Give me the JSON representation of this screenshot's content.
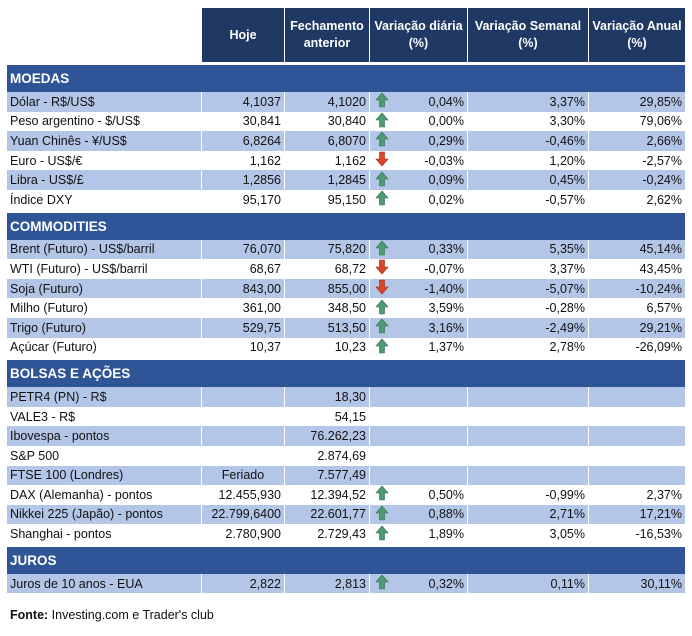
{
  "headers": [
    "Hoje",
    "Fechamento anterior",
    "Variação diária (%)",
    "Variação Semanal (%)",
    "Variação Anual (%)"
  ],
  "colors": {
    "header": "#1f3864",
    "section": "#2f5597",
    "band": "#b4c6e7",
    "up": "#4e9a72",
    "down": "#d9472b"
  },
  "sections": [
    {
      "title": "MOEDAS",
      "rows": [
        {
          "label": "Dólar - R$/US$",
          "hoje": "4,1037",
          "fech": "4,1020",
          "trend": "up",
          "diaria": "0,04%",
          "semanal": "3,37%",
          "anual": "29,85%"
        },
        {
          "label": "Peso argentino - $/US$",
          "hoje": "30,841",
          "fech": "30,840",
          "trend": "up",
          "diaria": "0,00%",
          "semanal": "3,30%",
          "anual": "79,06%"
        },
        {
          "label": "Yuan Chinês - ¥/US$",
          "hoje": "6,8264",
          "fech": "6,8070",
          "trend": "up",
          "diaria": "0,29%",
          "semanal": "-0,46%",
          "anual": "2,66%"
        },
        {
          "label": "Euro - US$/€",
          "hoje": "1,162",
          "fech": "1,162",
          "trend": "down",
          "diaria": "-0,03%",
          "semanal": "1,20%",
          "anual": "-2,57%"
        },
        {
          "label": "Libra - US$/£",
          "hoje": "1,2856",
          "fech": "1,2845",
          "trend": "up",
          "diaria": "0,09%",
          "semanal": "0,45%",
          "anual": "-0,24%"
        },
        {
          "label": "Índice DXY",
          "hoje": "95,170",
          "fech": "95,150",
          "trend": "up",
          "diaria": "0,02%",
          "semanal": "-0,57%",
          "anual": "2,62%"
        }
      ]
    },
    {
      "title": "COMMODITIES",
      "rows": [
        {
          "label": "Brent (Futuro) - US$/barril",
          "hoje": "76,070",
          "fech": "75,820",
          "trend": "up",
          "diaria": "0,33%",
          "semanal": "5,35%",
          "anual": "45,14%"
        },
        {
          "label": "WTI (Futuro) - US$/barril",
          "hoje": "68,67",
          "fech": "68,72",
          "trend": "down",
          "diaria": "-0,07%",
          "semanal": "3,37%",
          "anual": "43,45%"
        },
        {
          "label": "Soja (Futuro)",
          "hoje": "843,00",
          "fech": "855,00",
          "trend": "down",
          "diaria": "-1,40%",
          "semanal": "-5,07%",
          "anual": "-10,24%"
        },
        {
          "label": "Milho (Futuro)",
          "hoje": "361,00",
          "fech": "348,50",
          "trend": "up",
          "diaria": "3,59%",
          "semanal": "-0,28%",
          "anual": "6,57%"
        },
        {
          "label": "Trigo (Futuro)",
          "hoje": "529,75",
          "fech": "513,50",
          "trend": "up",
          "diaria": "3,16%",
          "semanal": "-2,49%",
          "anual": "29,21%"
        },
        {
          "label": "Açúcar (Futuro)",
          "hoje": "10,37",
          "fech": "10,23",
          "trend": "up",
          "diaria": "1,37%",
          "semanal": "2,78%",
          "anual": "-26,09%"
        }
      ]
    },
    {
      "title": "BOLSAS E AÇÕES",
      "rows": [
        {
          "label": "PETR4 (PN) - R$",
          "hoje": "",
          "fech": "18,30",
          "trend": "",
          "diaria": "",
          "semanal": "",
          "anual": ""
        },
        {
          "label": "VALE3 - R$",
          "hoje": "",
          "fech": "54,15",
          "trend": "",
          "diaria": "",
          "semanal": "",
          "anual": ""
        },
        {
          "label": "Ibovespa - pontos",
          "hoje": "",
          "fech": "76.262,23",
          "trend": "",
          "diaria": "",
          "semanal": "",
          "anual": ""
        },
        {
          "label": "S&P 500",
          "hoje": "",
          "fech": "2.874,69",
          "trend": "",
          "diaria": "",
          "semanal": "",
          "anual": ""
        },
        {
          "label": "FTSE 100 (Londres)",
          "hoje": "Feriado",
          "fech": "7.577,49",
          "trend": "",
          "diaria": "",
          "semanal": "",
          "anual": ""
        },
        {
          "label": "DAX (Alemanha) - pontos",
          "hoje": "12.455,930",
          "fech": "12.394,52",
          "trend": "up",
          "diaria": "0,50%",
          "semanal": "-0,99%",
          "anual": "2,37%"
        },
        {
          "label": "Nikkei 225 (Japão) - pontos",
          "hoje": "22.799,6400",
          "fech": "22.601,77",
          "trend": "up",
          "diaria": "0,88%",
          "semanal": "2,71%",
          "anual": "17,21%"
        },
        {
          "label": "Shanghai - pontos",
          "hoje": "2.780,900",
          "fech": "2.729,43",
          "trend": "up",
          "diaria": "1,89%",
          "semanal": "3,05%",
          "anual": "-16,53%"
        }
      ]
    },
    {
      "title": "JUROS",
      "rows": [
        {
          "label": "Juros de 10 anos - EUA",
          "hoje": "2,822",
          "fech": "2,813",
          "trend": "up",
          "diaria": "0,32%",
          "semanal": "0,11%",
          "anual": "30,11%"
        }
      ]
    }
  ],
  "footer": {
    "label": "Fonte:",
    "text": " Investing.com e Trader's club"
  }
}
